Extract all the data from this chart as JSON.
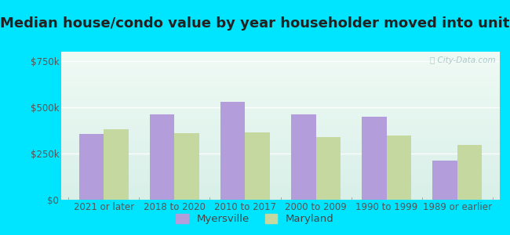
{
  "title": "Median house/condo value by year householder moved into unit",
  "categories": [
    "2021 or later",
    "2018 to 2020",
    "2010 to 2017",
    "2000 to 2009",
    "1990 to 1999",
    "1989 or earlier"
  ],
  "myersville": [
    355000,
    460000,
    530000,
    460000,
    450000,
    210000
  ],
  "maryland": [
    380000,
    360000,
    365000,
    340000,
    345000,
    295000
  ],
  "myersville_color": "#b39ddb",
  "maryland_color": "#c5d8a0",
  "background_outer": "#00e5ff",
  "ylabel_ticks": [
    0,
    250000,
    500000,
    750000
  ],
  "ylabel_labels": [
    "$0",
    "$250k",
    "$500k",
    "$750k"
  ],
  "ylim": [
    0,
    800000
  ],
  "legend_labels": [
    "Myersville",
    "Maryland"
  ],
  "title_fontsize": 13,
  "tick_fontsize": 8.5,
  "legend_fontsize": 9.5,
  "bar_width": 0.35,
  "watermark": "City-Data.com",
  "watermark_color": "#aac8c8",
  "gradient_top": "#f0faf5",
  "gradient_bottom": "#d8f0e8"
}
